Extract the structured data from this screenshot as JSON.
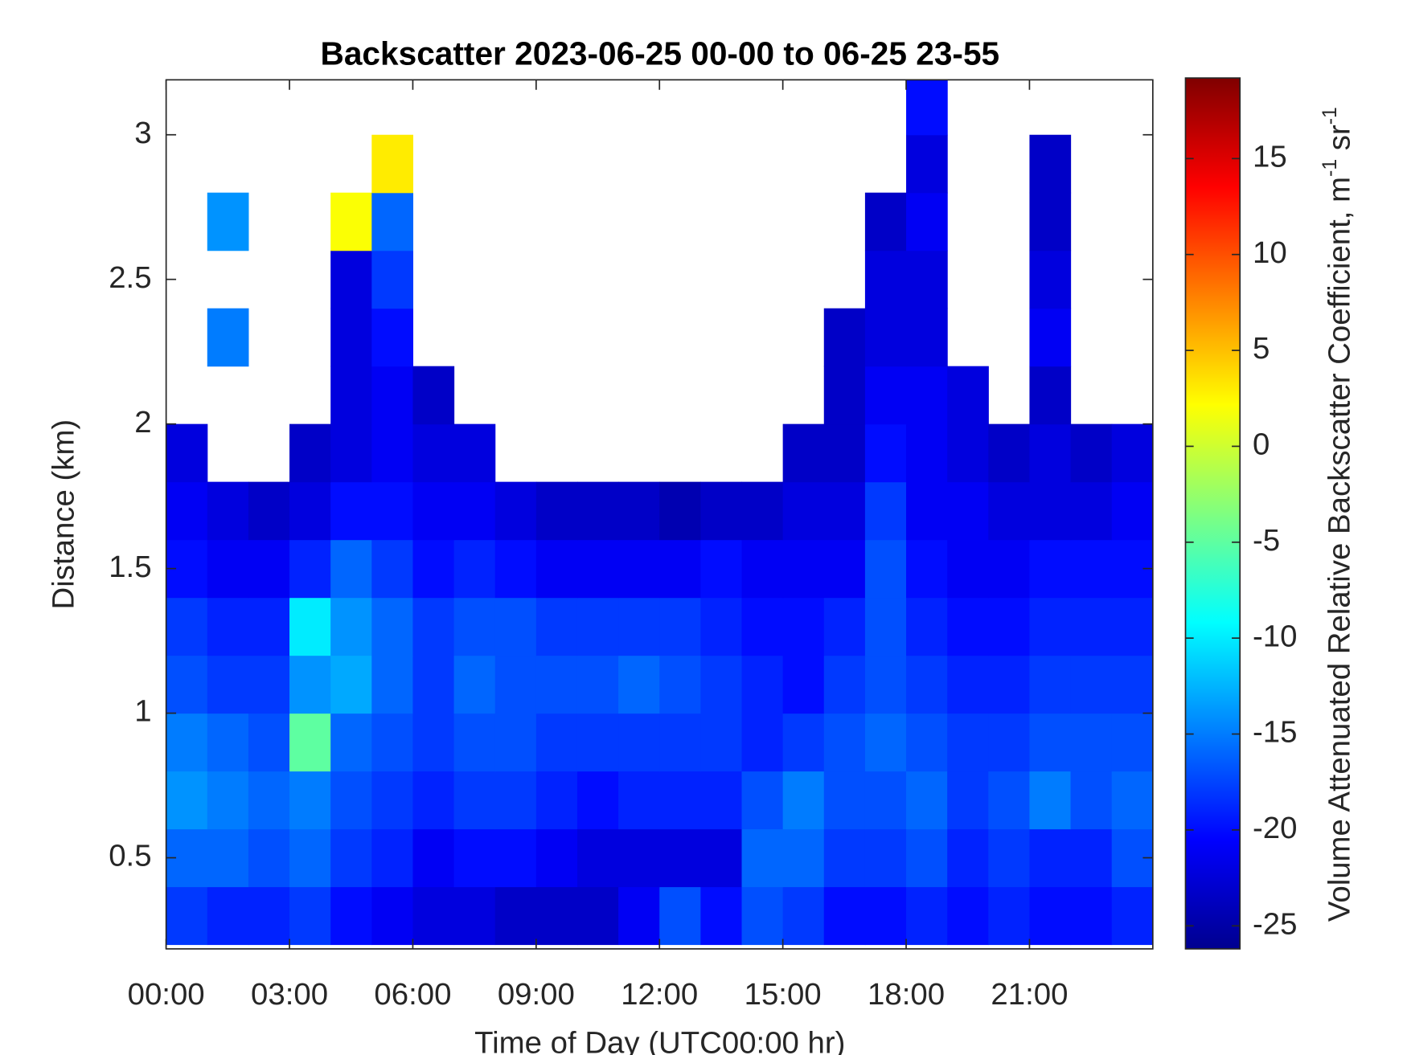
{
  "chart_data": {
    "type": "heatmap",
    "title": "Backscatter 2023-06-25 00-00 to 06-25 23-55",
    "x_label": "Time of Day (UTC00:00 hr)",
    "y_label": "Distance (km)",
    "colorbar_label": [
      "Volume Attenuated Relative Backscatter Coefficient, m",
      "-1",
      " sr",
      "-1"
    ],
    "colormap": "jet",
    "xlim": [
      0,
      24
    ],
    "xticks": [
      {
        "value": 0,
        "label": "00:00"
      },
      {
        "value": 3,
        "label": "03:00"
      },
      {
        "value": 6,
        "label": "06:00"
      },
      {
        "value": 9,
        "label": "09:00"
      },
      {
        "value": 12,
        "label": "12:00"
      },
      {
        "value": 15,
        "label": "15:00"
      },
      {
        "value": 18,
        "label": "18:00"
      },
      {
        "value": 21,
        "label": "21:00"
      }
    ],
    "ylim": [
      0.185,
      3.19
    ],
    "yticks": [
      0.5,
      1,
      1.5,
      2,
      2.5,
      3
    ],
    "clim": [
      -26.2,
      19.2
    ],
    "cticks": [
      -25,
      -20,
      -15,
      -10,
      -5,
      0,
      5,
      10,
      15
    ],
    "x": [
      0.5,
      1.5,
      2.5,
      3.5,
      4.5,
      5.5,
      6.5,
      7.5,
      8.5,
      9.5,
      10.5,
      11.5,
      12.5,
      13.5,
      14.5,
      15.5,
      16.5,
      17.5,
      18.5,
      19.5,
      20.5,
      21.5,
      22.5,
      23.5
    ],
    "y": [
      0.3,
      0.5,
      0.7,
      0.9,
      1.1,
      1.3,
      1.5,
      1.7,
      1.9,
      2.1,
      2.3,
      2.5,
      2.7,
      2.9,
      3.1
    ],
    "z": [
      [
        -18,
        -19,
        -19,
        -18,
        -20,
        -21,
        -22,
        -22,
        -23,
        -23,
        -23,
        -21,
        -17,
        -20,
        -17,
        -18,
        -20,
        -20,
        -19,
        -20,
        -19,
        -20,
        -20,
        -19
      ],
      [
        -16,
        -16,
        -17,
        -16,
        -18,
        -19,
        -21,
        -20,
        -20,
        -21,
        -22,
        -22,
        -22,
        -22,
        -16,
        -16,
        -18,
        -18,
        -17,
        -19,
        -18,
        -19,
        -19,
        -17
      ],
      [
        -14,
        -15,
        -16,
        -15,
        -17,
        -18,
        -19,
        -18,
        -18,
        -19,
        -20,
        -19,
        -19,
        -19,
        -17,
        -15,
        -17,
        -17,
        -16,
        -18,
        -17,
        -15,
        -17,
        -16
      ],
      [
        -15,
        -16,
        -17,
        -5,
        -16,
        -17,
        -18,
        -17,
        -17,
        -18,
        -18,
        -18,
        -18,
        -18,
        -19,
        -18,
        -17,
        -16,
        -17,
        -18,
        -18,
        -17,
        -17,
        -17
      ],
      [
        -17,
        -18,
        -18,
        -14,
        -13,
        -16,
        -18,
        -16,
        -17,
        -17,
        -17,
        -16,
        -17,
        -18,
        -19,
        -20,
        -18,
        -17,
        -18,
        -19,
        -19,
        -18,
        -18,
        -18
      ],
      [
        -18,
        -19,
        -19,
        -10,
        -14,
        -16,
        -18,
        -17,
        -17,
        -18,
        -18,
        -18,
        -18,
        -19,
        -20,
        -20,
        -19,
        -17,
        -19,
        -20,
        -20,
        -19,
        -19,
        -19
      ],
      [
        -20,
        -21,
        -21,
        -19,
        -16,
        -18,
        -20,
        -19,
        -20,
        -21,
        -21,
        -21,
        -21,
        -20,
        -21,
        -21,
        -21,
        -17,
        -20,
        -21,
        -21,
        -20,
        -20,
        -20
      ],
      [
        -21,
        -22,
        -23,
        -22,
        -20,
        -20,
        -21,
        -21,
        -22,
        -23,
        -23,
        -23,
        -24,
        -23,
        -23,
        -22,
        -22,
        -18,
        -21,
        -21,
        -22,
        -22,
        -22,
        -21
      ],
      [
        -22,
        null,
        null,
        -23,
        -22,
        -21,
        -22,
        -22,
        null,
        null,
        null,
        null,
        null,
        null,
        null,
        -23,
        -23,
        -20,
        -21,
        -22,
        -23,
        -22,
        -23,
        -22
      ],
      [
        null,
        null,
        null,
        null,
        -22,
        -21,
        -23,
        null,
        null,
        null,
        null,
        null,
        null,
        null,
        null,
        null,
        -23,
        -21,
        -21,
        -22,
        null,
        -23,
        null,
        null
      ],
      [
        null,
        -15,
        null,
        null,
        -22,
        -20,
        null,
        null,
        null,
        null,
        null,
        null,
        null,
        null,
        null,
        null,
        -23,
        -22,
        -22,
        null,
        null,
        -21,
        null,
        null
      ],
      [
        null,
        null,
        null,
        null,
        -22,
        -18,
        null,
        null,
        null,
        null,
        null,
        null,
        null,
        null,
        null,
        null,
        null,
        -22,
        -22,
        null,
        null,
        -22,
        null,
        null
      ],
      [
        null,
        -14,
        null,
        null,
        2,
        -16,
        null,
        null,
        null,
        null,
        null,
        null,
        null,
        null,
        null,
        null,
        null,
        -23,
        -21,
        null,
        null,
        -23,
        null,
        null
      ],
      [
        null,
        null,
        null,
        null,
        null,
        3,
        null,
        null,
        null,
        null,
        null,
        null,
        null,
        null,
        null,
        null,
        null,
        null,
        -22,
        null,
        null,
        -23,
        null,
        null
      ],
      [
        null,
        null,
        null,
        null,
        null,
        null,
        null,
        null,
        null,
        null,
        null,
        null,
        null,
        null,
        null,
        null,
        null,
        null,
        -20,
        null,
        null,
        null,
        null,
        null
      ]
    ]
  }
}
